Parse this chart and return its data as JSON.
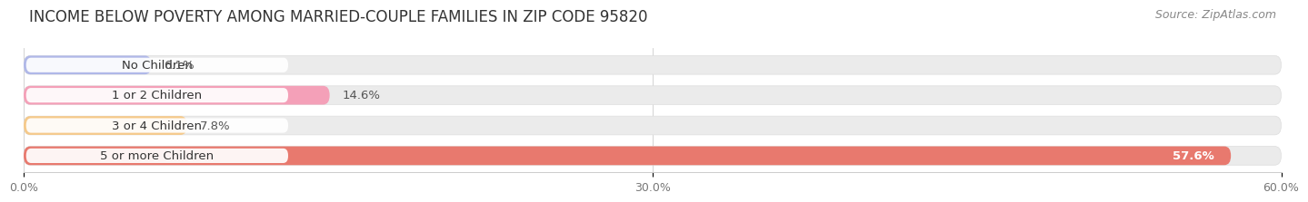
{
  "title": "INCOME BELOW POVERTY AMONG MARRIED-COUPLE FAMILIES IN ZIP CODE 95820",
  "source": "Source: ZipAtlas.com",
  "categories": [
    "No Children",
    "1 or 2 Children",
    "3 or 4 Children",
    "5 or more Children"
  ],
  "values": [
    6.1,
    14.6,
    7.8,
    57.6
  ],
  "bar_colors": [
    "#b0b8e8",
    "#f4a0b8",
    "#f5c98a",
    "#e8796e"
  ],
  "value_in_bar": [
    false,
    false,
    false,
    true
  ],
  "xlim": [
    0,
    60
  ],
  "xtick_vals": [
    0,
    30,
    60
  ],
  "xtick_labels": [
    "0.0%",
    "30.0%",
    "60.0%"
  ],
  "bar_height": 0.62,
  "bg_bar_color": "#ebebeb",
  "background_color": "#ffffff",
  "title_fontsize": 12,
  "source_fontsize": 9,
  "label_fontsize": 9.5,
  "value_fontsize": 9.5,
  "tick_fontsize": 9
}
